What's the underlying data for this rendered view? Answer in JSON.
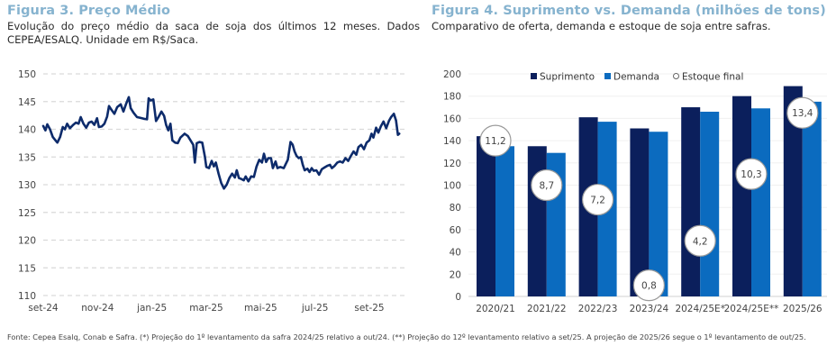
{
  "figure3": {
    "title": "Figura 3. Preço Médio",
    "subtitle": "Evolução do preço médio da saca de soja dos últimos 12 meses. Dados CEPEA/ESALQ. Unidade em R$/Saca."
  },
  "figure4": {
    "title": "Figura 4. Suprimento vs. Demanda (milhões de tons)",
    "subtitle": "Comparativo de oferta, demanda e estoque de soja entre safras."
  },
  "footer": "Fonte: Cepea Esalq, Conab e Safra. (*) Projeção do 1º levantamento da safra 2024/25 relativo a out/24. (**) Projeção do 12º levantamento relativo a set/25. A projeção de 2025/26 segue o 1º levantamento de out/25.",
  "colors": {
    "title": "#86b3cf",
    "line": "#0d2b6b",
    "suprimento": "#0b1f5c",
    "demanda": "#0b6bbf",
    "grid": "#d9d9d9"
  },
  "chart_data": [
    {
      "type": "line",
      "title": "Figura 3. Preço Médio",
      "xlabel": "",
      "ylabel": "R$/Saca",
      "ylim": [
        110,
        150
      ],
      "yticks": [
        110,
        115,
        120,
        125,
        130,
        135,
        140,
        145,
        150
      ],
      "xticks": [
        "set-24",
        "nov-24",
        "jan-25",
        "mar-25",
        "mai-25",
        "jul-25",
        "set-25"
      ],
      "grid": "horizontal-dashed",
      "x_range_months": [
        0,
        13.2
      ],
      "series": [
        {
          "name": "Preço médio",
          "points": [
            [
              0.0,
              140.6
            ],
            [
              0.08,
              139.8
            ],
            [
              0.15,
              140.9
            ],
            [
              0.25,
              140.0
            ],
            [
              0.35,
              138.6
            ],
            [
              0.45,
              138.0
            ],
            [
              0.52,
              137.6
            ],
            [
              0.62,
              138.6
            ],
            [
              0.72,
              140.4
            ],
            [
              0.8,
              140.0
            ],
            [
              0.88,
              141.0
            ],
            [
              0.98,
              140.2
            ],
            [
              1.1,
              140.8
            ],
            [
              1.2,
              141.2
            ],
            [
              1.3,
              141.0
            ],
            [
              1.38,
              142.2
            ],
            [
              1.48,
              141.0
            ],
            [
              1.58,
              140.3
            ],
            [
              1.68,
              141.2
            ],
            [
              1.78,
              141.4
            ],
            [
              1.88,
              140.8
            ],
            [
              1.98,
              142.0
            ],
            [
              2.05,
              140.4
            ],
            [
              2.15,
              140.5
            ],
            [
              2.25,
              141.0
            ],
            [
              2.35,
              142.3
            ],
            [
              2.42,
              144.2
            ],
            [
              2.5,
              143.6
            ],
            [
              2.62,
              142.8
            ],
            [
              2.72,
              144.0
            ],
            [
              2.85,
              144.5
            ],
            [
              2.95,
              143.2
            ],
            [
              3.05,
              144.6
            ],
            [
              3.15,
              145.8
            ],
            [
              3.22,
              143.8
            ],
            [
              3.32,
              143.0
            ],
            [
              3.45,
              142.2
            ],
            [
              3.55,
              142.1
            ],
            [
              3.7,
              141.9
            ],
            [
              3.82,
              141.8
            ],
            [
              3.88,
              145.6
            ],
            [
              3.95,
              145.2
            ],
            [
              4.05,
              145.4
            ],
            [
              4.15,
              141.5
            ],
            [
              4.25,
              142.3
            ],
            [
              4.35,
              143.2
            ],
            [
              4.45,
              142.4
            ],
            [
              4.52,
              140.8
            ],
            [
              4.6,
              139.8
            ],
            [
              4.68,
              141.0
            ],
            [
              4.75,
              138.0
            ],
            [
              4.85,
              137.6
            ],
            [
              4.95,
              137.5
            ],
            [
              5.05,
              138.5
            ],
            [
              5.2,
              139.2
            ],
            [
              5.32,
              138.8
            ],
            [
              5.42,
              138.0
            ],
            [
              5.52,
              137.2
            ],
            [
              5.58,
              134.0
            ],
            [
              5.65,
              137.5
            ],
            [
              5.75,
              137.7
            ],
            [
              5.85,
              137.6
            ],
            [
              5.95,
              135.0
            ],
            [
              6.0,
              133.2
            ],
            [
              6.1,
              133.0
            ],
            [
              6.2,
              134.3
            ],
            [
              6.28,
              133.3
            ],
            [
              6.35,
              134.0
            ],
            [
              6.45,
              132.0
            ],
            [
              6.55,
              130.3
            ],
            [
              6.65,
              129.3
            ],
            [
              6.75,
              130.0
            ],
            [
              6.85,
              131.2
            ],
            [
              6.95,
              132.0
            ],
            [
              7.05,
              131.3
            ],
            [
              7.12,
              132.6
            ],
            [
              7.2,
              131.2
            ],
            [
              7.3,
              131.0
            ],
            [
              7.38,
              130.8
            ],
            [
              7.45,
              131.5
            ],
            [
              7.55,
              130.6
            ],
            [
              7.65,
              131.5
            ],
            [
              7.75,
              131.4
            ],
            [
              7.85,
              133.3
            ],
            [
              7.95,
              134.5
            ],
            [
              8.05,
              134.0
            ],
            [
              8.12,
              135.6
            ],
            [
              8.2,
              134.1
            ],
            [
              8.28,
              134.8
            ],
            [
              8.38,
              134.8
            ],
            [
              8.45,
              133.0
            ],
            [
              8.55,
              134.2
            ],
            [
              8.62,
              133.0
            ],
            [
              8.72,
              133.2
            ],
            [
              8.85,
              133.0
            ],
            [
              9.0,
              134.5
            ],
            [
              9.1,
              137.7
            ],
            [
              9.18,
              137.2
            ],
            [
              9.25,
              136.0
            ],
            [
              9.32,
              135.2
            ],
            [
              9.4,
              134.8
            ],
            [
              9.48,
              135.0
            ],
            [
              9.55,
              133.6
            ],
            [
              9.62,
              132.6
            ],
            [
              9.72,
              132.9
            ],
            [
              9.8,
              132.3
            ],
            [
              9.88,
              133.0
            ],
            [
              9.95,
              132.5
            ],
            [
              10.05,
              132.6
            ],
            [
              10.15,
              131.8
            ],
            [
              10.25,
              132.8
            ],
            [
              10.35,
              133.1
            ],
            [
              10.45,
              133.4
            ],
            [
              10.55,
              133.6
            ],
            [
              10.62,
              133.0
            ],
            [
              10.72,
              133.4
            ],
            [
              10.82,
              134.0
            ],
            [
              10.92,
              134.2
            ],
            [
              11.02,
              134.0
            ],
            [
              11.12,
              134.8
            ],
            [
              11.22,
              134.3
            ],
            [
              11.32,
              135.2
            ],
            [
              11.42,
              136.0
            ],
            [
              11.52,
              135.4
            ],
            [
              11.6,
              136.8
            ],
            [
              11.7,
              137.2
            ],
            [
              11.8,
              136.4
            ],
            [
              11.9,
              137.6
            ],
            [
              12.0,
              138.0
            ],
            [
              12.08,
              139.2
            ],
            [
              12.15,
              138.5
            ],
            [
              12.25,
              140.3
            ],
            [
              12.33,
              139.4
            ],
            [
              12.42,
              140.5
            ],
            [
              12.52,
              141.4
            ],
            [
              12.62,
              140.2
            ],
            [
              12.72,
              141.5
            ],
            [
              12.8,
              142.2
            ],
            [
              12.9,
              142.8
            ],
            [
              12.98,
              141.6
            ],
            [
              13.05,
              139.0
            ],
            [
              13.1,
              139.2
            ]
          ]
        }
      ]
    },
    {
      "type": "bar",
      "title": "Figura 4. Suprimento vs. Demanda (milhões de tons)",
      "xlabel": "",
      "ylabel": "milhões de tons",
      "ylim": [
        0,
        200
      ],
      "yticks": [
        0,
        20,
        40,
        60,
        80,
        100,
        120,
        140,
        160,
        180,
        200
      ],
      "grid": "horizontal",
      "legend": "top-right",
      "categories": [
        "2020/21",
        "2021/22",
        "2022/23",
        "2023/24",
        "2024/25E*",
        "2024/25E**",
        "2025/26"
      ],
      "series": [
        {
          "name": "Suprimento",
          "values": [
            144,
            135,
            161,
            151,
            170,
            180,
            189
          ]
        },
        {
          "name": "Demanda",
          "values": [
            135,
            129,
            157,
            148,
            166,
            169,
            175
          ]
        },
        {
          "name": "Estoque final",
          "values": [
            11.2,
            8.7,
            7.2,
            0.8,
            4.2,
            10.3,
            13.4
          ],
          "labels": [
            "11,2",
            "8,7",
            "7,2",
            "0,8",
            "4,2",
            "10,3",
            "13,4"
          ],
          "bubble_y_position": [
            140,
            100,
            87,
            10,
            50,
            110,
            165
          ]
        }
      ]
    }
  ]
}
